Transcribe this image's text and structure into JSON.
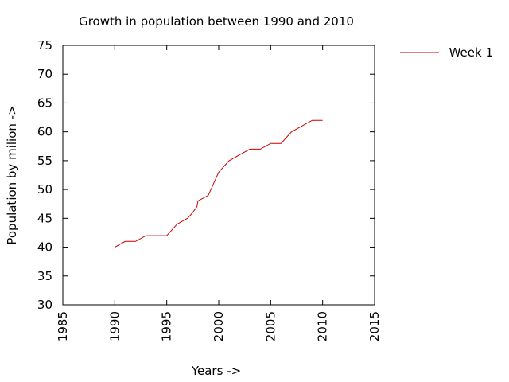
{
  "chart_data": {
    "type": "line",
    "title": "Growth in population between 1990 and 2010",
    "xlabel": "Years ->",
    "ylabel": "Population by milion ->",
    "xlim": [
      1985,
      2015
    ],
    "ylim": [
      30,
      75
    ],
    "xticks": [
      "1985",
      "1990",
      "1995",
      "2000",
      "2005",
      "2010",
      "2015"
    ],
    "yticks": [
      "30",
      "35",
      "40",
      "45",
      "50",
      "55",
      "60",
      "65",
      "70",
      "75"
    ],
    "legend_position": "top-right, outside plot",
    "series": [
      {
        "name": "Week 1",
        "color": "#cc0000",
        "x": [
          1990,
          1991,
          1992,
          1993,
          1994,
          1995,
          1996,
          1997,
          1997.5,
          1997.9,
          1998,
          1998.5,
          1999,
          2000,
          2001,
          2002,
          2003,
          2004,
          2005,
          2006,
          2007,
          2008,
          2009,
          2010
        ],
        "y": [
          40,
          41,
          41,
          42,
          42,
          42,
          44,
          45,
          46,
          47,
          48,
          48.5,
          49,
          53,
          55,
          56,
          57,
          57,
          58,
          58,
          60,
          61,
          62,
          62
        ]
      }
    ]
  }
}
